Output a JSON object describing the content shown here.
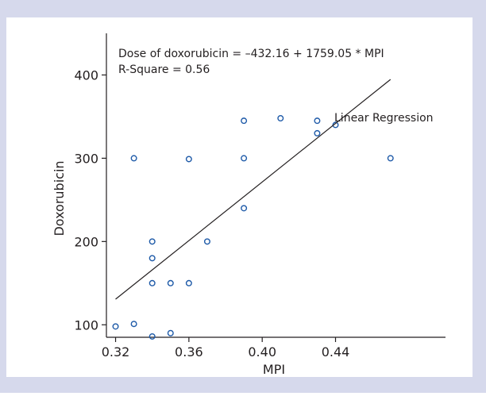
{
  "chart_data": {
    "type": "scatter",
    "title": "",
    "xlabel": "MPI",
    "ylabel": "Doxorubicin",
    "xlim": [
      0.315,
      0.5
    ],
    "ylim": [
      85,
      450
    ],
    "xticks": [
      0.32,
      0.36,
      0.4,
      0.44
    ],
    "xtick_labels": [
      "0.32",
      "0.36",
      "0.40",
      "0.44"
    ],
    "yticks": [
      100,
      200,
      300,
      400
    ],
    "ytick_labels": [
      "100",
      "200",
      "300",
      "400"
    ],
    "grid": false,
    "annotations": {
      "equation": "Dose of doxorubicin = –432.16 + 1759.05 * MPI",
      "r_square": "R-Square = 0.56",
      "regression_label": "Linear Regression"
    },
    "regression": {
      "intercept": -432.16,
      "slope": 1759.05,
      "x_range": [
        0.32,
        0.47
      ]
    },
    "points": [
      {
        "x": 0.32,
        "y": 98
      },
      {
        "x": 0.33,
        "y": 101
      },
      {
        "x": 0.34,
        "y": 86
      },
      {
        "x": 0.35,
        "y": 90
      },
      {
        "x": 0.34,
        "y": 150
      },
      {
        "x": 0.35,
        "y": 150
      },
      {
        "x": 0.36,
        "y": 150
      },
      {
        "x": 0.34,
        "y": 180
      },
      {
        "x": 0.34,
        "y": 200
      },
      {
        "x": 0.37,
        "y": 200
      },
      {
        "x": 0.39,
        "y": 240
      },
      {
        "x": 0.33,
        "y": 300
      },
      {
        "x": 0.36,
        "y": 299
      },
      {
        "x": 0.39,
        "y": 300
      },
      {
        "x": 0.47,
        "y": 300
      },
      {
        "x": 0.39,
        "y": 345
      },
      {
        "x": 0.41,
        "y": 348
      },
      {
        "x": 0.43,
        "y": 345
      },
      {
        "x": 0.43,
        "y": 330
      },
      {
        "x": 0.44,
        "y": 340
      }
    ],
    "colors": {
      "outer_background": "#d6d9ec",
      "plot_background": "#ffffff",
      "marker": "#1e5aa8",
      "ink": "#231f20"
    }
  }
}
